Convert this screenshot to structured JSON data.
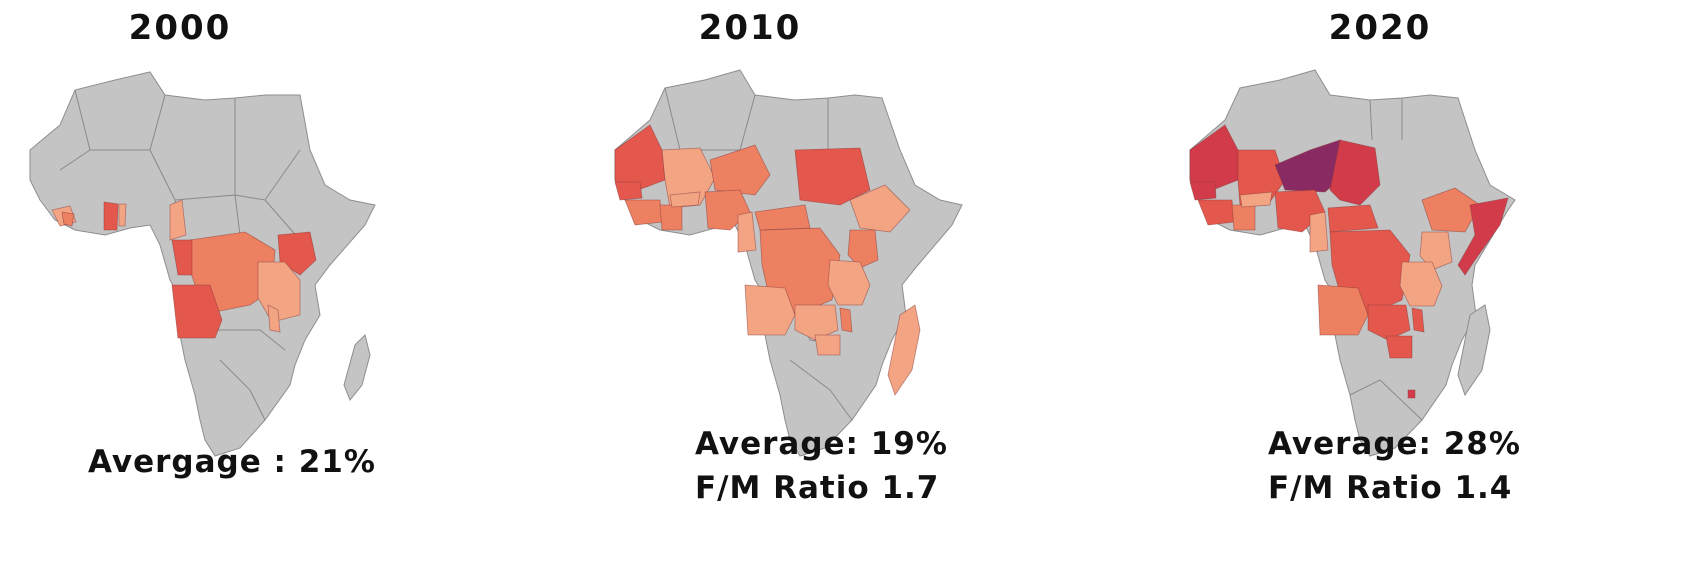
{
  "panels": [
    {
      "year": "2000",
      "line1": "Avergage : 21%",
      "line2": ""
    },
    {
      "year": "2010",
      "line1": "Average: 19%",
      "line2": "F/M Ratio 1.7"
    },
    {
      "year": "2020",
      "line1": "Average: 28%",
      "line2": "F/M Ratio 1.4"
    }
  ],
  "colors": {
    "no_data": "#c4c4c4",
    "light": "#f2a483",
    "medium": "#ec8060",
    "strong": "#e4574c",
    "stronger": "#d23c4a",
    "darkest": "#8a2a62"
  }
}
